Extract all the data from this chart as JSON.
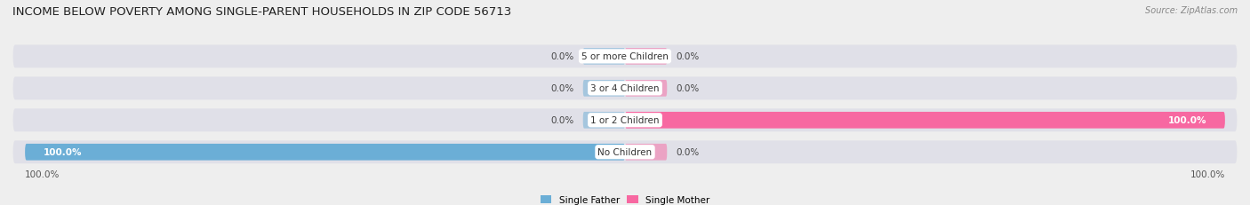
{
  "title": "INCOME BELOW POVERTY AMONG SINGLE-PARENT HOUSEHOLDS IN ZIP CODE 56713",
  "source": "Source: ZipAtlas.com",
  "categories": [
    "5 or more Children",
    "3 or 4 Children",
    "1 or 2 Children",
    "No Children"
  ],
  "father_values": [
    0.0,
    0.0,
    0.0,
    100.0
  ],
  "mother_values": [
    0.0,
    0.0,
    100.0,
    0.0
  ],
  "father_color": "#6baed6",
  "mother_color": "#f768a1",
  "father_label": "Single Father",
  "mother_label": "Single Mother",
  "background_color": "#eeeeee",
  "row_bg_color": "#e0e0e8",
  "title_fontsize": 9.5,
  "label_fontsize": 7.5,
  "category_fontsize": 7.5,
  "axis_label_fontsize": 7.5,
  "xlim": 100,
  "bar_height": 0.52,
  "stub": 7
}
